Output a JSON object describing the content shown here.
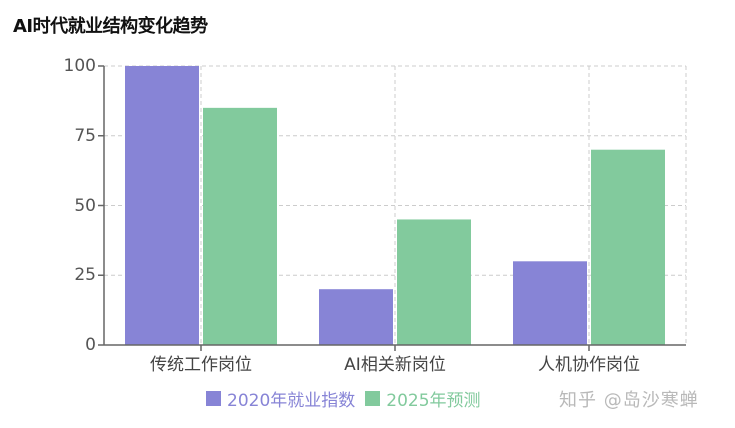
{
  "chart_data": {
    "type": "bar",
    "title": "AI时代就业结构变化趋势",
    "categories": [
      "传统工作岗位",
      "AI相关新岗位",
      "人机协作岗位"
    ],
    "series": [
      {
        "name": "2020年就业指数",
        "values": [
          100,
          20,
          30
        ],
        "color": "#8784d6"
      },
      {
        "name": "2025年预测",
        "values": [
          85,
          45,
          70
        ],
        "color": "#82ca9d"
      }
    ],
    "xlabel": "",
    "ylabel": "",
    "ylim": [
      0,
      100
    ],
    "yticks": [
      0,
      25,
      50,
      75,
      100
    ],
    "grid": true,
    "legend_position": "bottom"
  },
  "title": "AI时代就业结构变化趋势",
  "legend": [
    {
      "label": "2020年就业指数",
      "color": "#8784d6"
    },
    {
      "label": "2025年预测",
      "color": "#82ca9d"
    }
  ],
  "watermark": "知乎 @岛沙寒蝉"
}
